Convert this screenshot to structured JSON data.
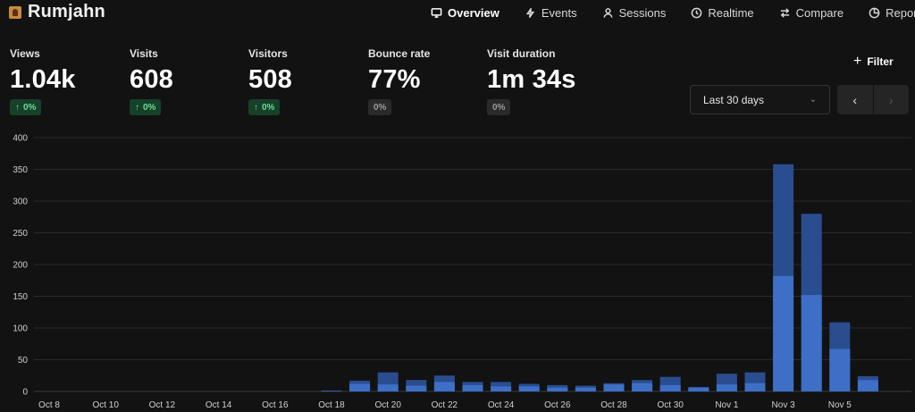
{
  "site": {
    "name": "Rumjahn"
  },
  "nav": [
    {
      "label": "Overview",
      "icon": "monitor-icon",
      "active": true
    },
    {
      "label": "Events",
      "icon": "lightning-icon",
      "active": false
    },
    {
      "label": "Sessions",
      "icon": "user-icon",
      "active": false
    },
    {
      "label": "Realtime",
      "icon": "clock-icon",
      "active": false
    },
    {
      "label": "Compare",
      "icon": "arrows-icon",
      "active": false
    },
    {
      "label": "Reports",
      "icon": "report-icon",
      "active": false
    }
  ],
  "metrics": [
    {
      "label": "Views",
      "value": "1.04k",
      "change": "0%",
      "trend": "up"
    },
    {
      "label": "Visits",
      "value": "608",
      "change": "0%",
      "trend": "up"
    },
    {
      "label": "Visitors",
      "value": "508",
      "change": "0%",
      "trend": "up"
    },
    {
      "label": "Bounce rate",
      "value": "77%",
      "change": "0%",
      "trend": "flat"
    },
    {
      "label": "Visit duration",
      "value": "1m 34s",
      "change": "0%",
      "trend": "flat"
    }
  ],
  "controls": {
    "filter_label": "Filter",
    "date_range": "Last 30 days",
    "prev_icon": "chevron-left-icon",
    "next_icon": "chevron-right-icon"
  },
  "colors": {
    "background": "#121212",
    "visitors_bar": "#3d6fc7",
    "views_bar": "#2a4d8f",
    "badge_up_bg": "#16402a",
    "badge_up_text": "#6ddb93"
  },
  "chart_data": {
    "type": "bar",
    "stacked_overlay": true,
    "ylim": [
      0,
      400
    ],
    "yticks": [
      0,
      50,
      100,
      150,
      200,
      250,
      300,
      350,
      400
    ],
    "xtick_labels": [
      "Oct 8",
      "Oct 10",
      "Oct 12",
      "Oct 14",
      "Oct 16",
      "Oct 18",
      "Oct 20",
      "Oct 22",
      "Oct 24",
      "Oct 26",
      "Oct 28",
      "Oct 30",
      "Nov 1",
      "Nov 3",
      "Nov 5"
    ],
    "grid": true,
    "categories": [
      "Oct 8",
      "Oct 9",
      "Oct 10",
      "Oct 11",
      "Oct 12",
      "Oct 13",
      "Oct 14",
      "Oct 15",
      "Oct 16",
      "Oct 17",
      "Oct 18",
      "Oct 19",
      "Oct 20",
      "Oct 21",
      "Oct 22",
      "Oct 23",
      "Oct 24",
      "Oct 25",
      "Oct 26",
      "Oct 27",
      "Oct 28",
      "Oct 29",
      "Oct 30",
      "Oct 31",
      "Nov 1",
      "Nov 2",
      "Nov 3",
      "Nov 4",
      "Nov 5",
      "Nov 6"
    ],
    "series": [
      {
        "values": [
          0,
          0,
          0,
          0,
          0,
          0,
          0,
          0,
          0,
          0,
          1,
          17,
          30,
          18,
          25,
          15,
          15,
          12,
          10,
          9,
          13,
          18,
          23,
          7,
          28,
          30,
          358,
          280,
          109,
          24
        ]
      },
      {
        "values": [
          0,
          0,
          0,
          0,
          0,
          0,
          0,
          0,
          0,
          0,
          1,
          12,
          11,
          9,
          15,
          10,
          8,
          8,
          6,
          6,
          11,
          13,
          10,
          6,
          11,
          13,
          182,
          152,
          67,
          18
        ]
      }
    ]
  }
}
